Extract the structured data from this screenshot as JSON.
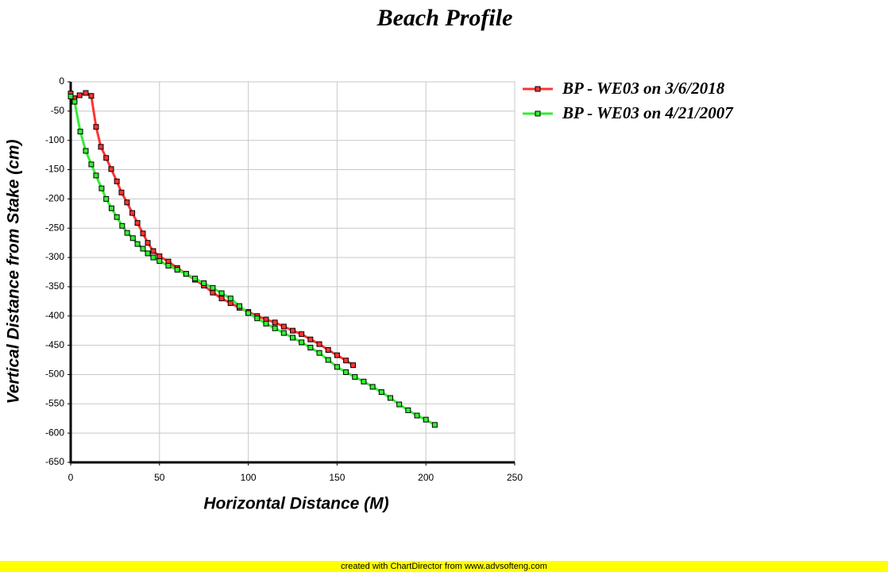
{
  "chart_data": {
    "type": "line",
    "title": "Beach Profile",
    "xlabel": "Horizontal Distance (M)",
    "ylabel": "Vertical Distance from Stake (cm)",
    "xlim": [
      0,
      250
    ],
    "xticks": [
      0,
      50,
      100,
      150,
      200,
      250
    ],
    "ylim": [
      -650,
      0
    ],
    "yticks": [
      0,
      -50,
      -100,
      -150,
      -200,
      -250,
      -300,
      -350,
      -400,
      -450,
      -500,
      -550,
      -600,
      -650
    ],
    "grid": true,
    "legend": "right",
    "series": [
      {
        "name": "BP - WE03 on 3/6/2018",
        "color": "#ff3333",
        "x": [
          0,
          2,
          5,
          8.5,
          11.6,
          14.3,
          17,
          20,
          22.8,
          26,
          28.6,
          31.7,
          34.7,
          37.6,
          40.7,
          43.4,
          46.5,
          50,
          55,
          60,
          65,
          70,
          75,
          80,
          85,
          90,
          95,
          100,
          105,
          110,
          115,
          120,
          125,
          130,
          135,
          140,
          145,
          150,
          155,
          159
        ],
        "values": [
          -20,
          -28,
          -23,
          -19,
          -24,
          -77,
          -111,
          -130,
          -149,
          -170,
          -189,
          -206,
          -224,
          -241,
          -259,
          -275,
          -289,
          -298,
          -307,
          -318,
          -328,
          -338,
          -348,
          -360,
          -370,
          -378,
          -386,
          -393,
          -400,
          -406,
          -411,
          -418,
          -425,
          -431,
          -440,
          -448,
          -458,
          -467,
          -476,
          -484
        ]
      },
      {
        "name": "BP - WE03 on 4/21/2007",
        "color": "#33ee33",
        "x": [
          0,
          2.2,
          5.4,
          8.5,
          11.6,
          14.3,
          17.4,
          20,
          23,
          26,
          29,
          31.8,
          35,
          37.6,
          40.7,
          43.4,
          46.5,
          50,
          55,
          60,
          65,
          70,
          75,
          80,
          85,
          90,
          95,
          100,
          105,
          110,
          115,
          120,
          125,
          130,
          135,
          140,
          145,
          150,
          155,
          160,
          165,
          170,
          175,
          180,
          185,
          190,
          195,
          200,
          205
        ],
        "values": [
          -25,
          -34,
          -85,
          -118,
          -141,
          -160,
          -182,
          -200,
          -216,
          -231,
          -246,
          -258,
          -267,
          -277,
          -285,
          -293,
          -300,
          -306,
          -314,
          -321,
          -328,
          -336,
          -344,
          -352,
          -361,
          -370,
          -383,
          -395,
          -404,
          -413,
          -421,
          -429,
          -437,
          -445,
          -454,
          -463,
          -475,
          -487,
          -496,
          -504,
          -512,
          -521,
          -530,
          -540,
          -551,
          -561,
          -570,
          -577,
          -586
        ]
      }
    ]
  },
  "footer": "created with ChartDirector from www.advsofteng.com"
}
